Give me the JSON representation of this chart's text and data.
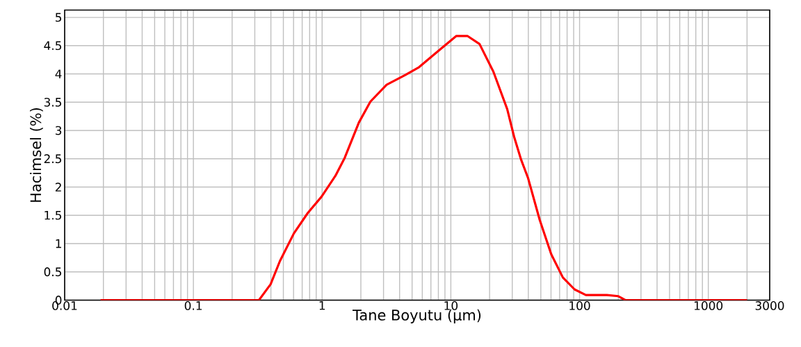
{
  "chart_data": {
    "type": "line",
    "xlabel": "Tane Boyutu (µm)",
    "ylabel": "Hacimsel (%)",
    "log": "x",
    "grid": true,
    "marker": "none",
    "line_style": "solid",
    "xlim": [
      0.01,
      3000
    ],
    "ylim": [
      0,
      5.13
    ],
    "xticks": [
      0.01,
      0.1,
      1,
      10,
      100,
      1000,
      3000
    ],
    "yticks": [
      0,
      0.5,
      1,
      1.5,
      2,
      2.5,
      3,
      3.5,
      4,
      4.5,
      5
    ],
    "series": [
      {
        "color": "#ff0000",
        "x": [
          0.019,
          0.1,
          0.323,
          0.398,
          0.47,
          0.603,
          0.773,
          0.99,
          1.27,
          1.5,
          1.93,
          2.37,
          3.17,
          4.42,
          5.66,
          8.22,
          11.0,
          13.5,
          16.7,
          21.4,
          27.4,
          31.0,
          35.2,
          39.8,
          49.0,
          60.3,
          74.2,
          91.4,
          112,
          163,
          200,
          227,
          1000,
          2000
        ],
        "values": [
          0,
          0,
          0,
          0.28,
          0.69,
          1.18,
          1.54,
          1.83,
          2.2,
          2.52,
          3.14,
          3.51,
          3.81,
          3.98,
          4.12,
          4.43,
          4.67,
          4.67,
          4.53,
          4.04,
          3.38,
          2.89,
          2.48,
          2.16,
          1.42,
          0.81,
          0.4,
          0.19,
          0.09,
          0.09,
          0.07,
          0,
          0,
          0
        ]
      }
    ]
  }
}
